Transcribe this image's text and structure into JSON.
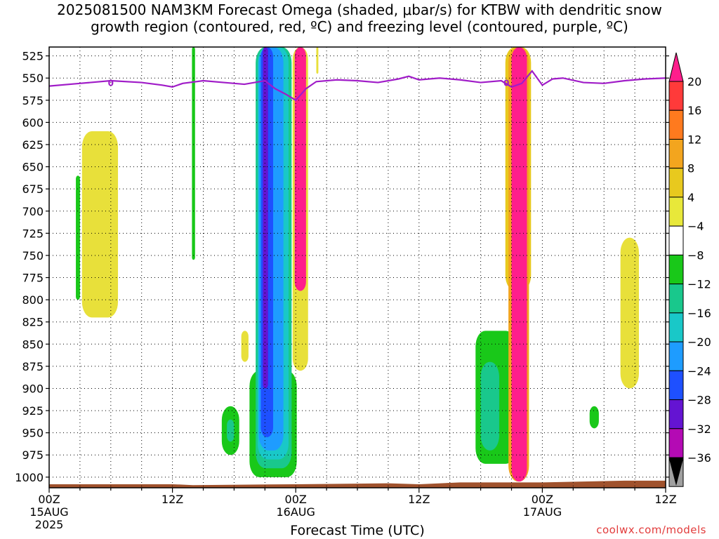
{
  "title": {
    "line1": "2025081500 NAM3KM Forecast Omega (shaded, μbar/s) for KTBW with dendritic snow",
    "line2": "growth region (contoured, red, ºC) and freezing level (contoured, purple, ºC)"
  },
  "credit": "coolwx.com/models",
  "chart_data": {
    "type": "heatmap",
    "xlabel": "Forecast Time (UTC)",
    "ylabel": "",
    "xlim": [
      0,
      60
    ],
    "ylim": [
      1012,
      515
    ],
    "y_axis": "pressure (hPa), inverted",
    "y_ticks": [
      "525",
      "550",
      "575",
      "600",
      "625",
      "650",
      "675",
      "700",
      "725",
      "750",
      "775",
      "800",
      "825",
      "850",
      "875",
      "900",
      "925",
      "950",
      "975",
      "1000"
    ],
    "x_ticks": [
      {
        "hour": 0,
        "label": "00Z",
        "sub": "15AUG",
        "sub2": "2025"
      },
      {
        "hour": 12,
        "label": "12Z",
        "sub": "",
        "sub2": ""
      },
      {
        "hour": 24,
        "label": "00Z",
        "sub": "16AUG",
        "sub2": ""
      },
      {
        "hour": 36,
        "label": "12Z",
        "sub": "",
        "sub2": ""
      },
      {
        "hour": 48,
        "label": "00Z",
        "sub": "17AUG",
        "sub2": ""
      },
      {
        "hour": 60,
        "label": "12Z",
        "sub": "",
        "sub2": ""
      }
    ],
    "grid": true,
    "colorbar": {
      "labels": [
        "20",
        "16",
        "12",
        "8",
        "4",
        "−4",
        "−8",
        "−12",
        "−16",
        "−20",
        "−24",
        "−28",
        "−32",
        "−36"
      ],
      "colors": [
        "#ff1e8c",
        "#ff3a3a",
        "#ff7a1e",
        "#f3a51e",
        "#e8c91e",
        "#e8e83a",
        "#ffffff",
        "#19c819",
        "#19c88c",
        "#19c8c8",
        "#1e9cff",
        "#1e50ff",
        "#6414d2",
        "#b40ab4",
        "#a0a0a0"
      ]
    },
    "freezing_level": {
      "label": "0",
      "color": "#a01cc8",
      "points": [
        [
          0,
          559
        ],
        [
          3,
          556
        ],
        [
          6,
          553
        ],
        [
          9,
          555
        ],
        [
          11,
          558
        ],
        [
          12,
          560
        ],
        [
          13,
          556
        ],
        [
          15,
          553
        ],
        [
          17,
          555
        ],
        [
          19,
          557
        ],
        [
          21,
          553
        ],
        [
          22,
          562
        ],
        [
          23,
          568
        ],
        [
          24,
          575
        ],
        [
          25,
          562
        ],
        [
          26,
          554
        ],
        [
          28,
          552
        ],
        [
          30,
          553
        ],
        [
          32,
          555
        ],
        [
          34,
          551
        ],
        [
          35,
          548
        ],
        [
          36,
          552
        ],
        [
          38,
          550
        ],
        [
          40,
          552
        ],
        [
          42,
          555
        ],
        [
          44,
          553
        ],
        [
          45,
          560
        ],
        [
          46,
          556
        ],
        [
          47,
          542
        ],
        [
          48,
          558
        ],
        [
          49,
          551
        ],
        [
          50,
          550
        ],
        [
          52,
          555
        ],
        [
          54,
          556
        ],
        [
          56,
          553
        ],
        [
          58,
          551
        ],
        [
          60,
          550
        ]
      ]
    },
    "regions": [
      {
        "name": "green-strip-a",
        "color": "#19c819",
        "hours": [
          2.6,
          3.0
        ],
        "p_top": 660,
        "p_bot": 800
      },
      {
        "name": "yellow-plume-a",
        "color": "#e8e03a",
        "hours": [
          3.2,
          6.7
        ],
        "p_top": 610,
        "p_bot": 820
      },
      {
        "name": "green-strip-b",
        "color": "#19c819",
        "hours": [
          13.9,
          14.2
        ],
        "p_top": 515,
        "p_bot": 755
      },
      {
        "name": "green-blob-c",
        "color": "#19c819",
        "hours": [
          16.8,
          18.5
        ],
        "p_top": 920,
        "p_bot": 975
      },
      {
        "name": "teal-blob-c",
        "color": "#19c88c",
        "hours": [
          17.3,
          18.0
        ],
        "p_top": 935,
        "p_bot": 960
      },
      {
        "name": "yellow-tuft-d",
        "color": "#e8e03a",
        "hours": [
          18.7,
          19.4
        ],
        "p_top": 835,
        "p_bot": 870
      },
      {
        "name": "green-base-e",
        "color": "#19c819",
        "hours": [
          19.5,
          24.1
        ],
        "p_top": 880,
        "p_bot": 1000
      },
      {
        "name": "teal-band-e",
        "color": "#19c88c",
        "hours": [
          20.1,
          23.6
        ],
        "p_top": 515,
        "p_bot": 990
      },
      {
        "name": "cyan-band-e",
        "color": "#19c8c8",
        "hours": [
          20.3,
          23.3
        ],
        "p_top": 515,
        "p_bot": 980
      },
      {
        "name": "blue-band-e",
        "color": "#1e9cff",
        "hours": [
          20.4,
          22.8
        ],
        "p_top": 515,
        "p_bot": 970
      },
      {
        "name": "deepblue-band-e",
        "color": "#1e50ff",
        "hours": [
          20.6,
          21.8
        ],
        "p_top": 515,
        "p_bot": 955
      },
      {
        "name": "purple-core-e",
        "color": "#6414d2",
        "hours": [
          20.8,
          21.3
        ],
        "p_top": 515,
        "p_bot": 900
      },
      {
        "name": "yellow-edge-f",
        "color": "#e8e03a",
        "hours": [
          23.7,
          25.2
        ],
        "p_top": 515,
        "p_bot": 880
      },
      {
        "name": "magenta-band-f",
        "color": "#ff1e8c",
        "hours": [
          23.9,
          25.0
        ],
        "p_top": 515,
        "p_bot": 790
      },
      {
        "name": "yellow-tuft-g",
        "color": "#e8e03a",
        "hours": [
          26.0,
          26.2
        ],
        "p_top": 515,
        "p_bot": 545
      },
      {
        "name": "green-blob-h",
        "color": "#19c819",
        "hours": [
          41.5,
          45.4
        ],
        "p_top": 835,
        "p_bot": 985
      },
      {
        "name": "teal-blob-h",
        "color": "#19c88c",
        "hours": [
          42.0,
          43.8
        ],
        "p_top": 870,
        "p_bot": 970
      },
      {
        "name": "yellow-band-i",
        "color": "#e8c91e",
        "hours": [
          44.4,
          46.9
        ],
        "p_top": 515,
        "p_bot": 790
      },
      {
        "name": "orange-edge-i",
        "color": "#f3a51e",
        "hours": [
          44.7,
          46.7
        ],
        "p_top": 515,
        "p_bot": 1005
      },
      {
        "name": "magenta-band-i",
        "color": "#ff1e8c",
        "hours": [
          45.0,
          46.5
        ],
        "p_top": 515,
        "p_bot": 1005
      },
      {
        "name": "green-dot-j",
        "color": "#19c819",
        "hours": [
          52.6,
          53.5
        ],
        "p_top": 920,
        "p_bot": 945
      },
      {
        "name": "yellow-plume-k",
        "color": "#e8e03a",
        "hours": [
          55.6,
          57.4
        ],
        "p_top": 730,
        "p_bot": 900
      }
    ],
    "terrain": {
      "color": "#a0522d",
      "surface_hpa": [
        [
          0,
          1008
        ],
        [
          12,
          1008
        ],
        [
          14,
          1009
        ],
        [
          24,
          1008
        ],
        [
          33,
          1007
        ],
        [
          36,
          1008
        ],
        [
          40,
          1006
        ],
        [
          48,
          1006
        ],
        [
          56,
          1004
        ],
        [
          60,
          1004
        ]
      ]
    }
  }
}
